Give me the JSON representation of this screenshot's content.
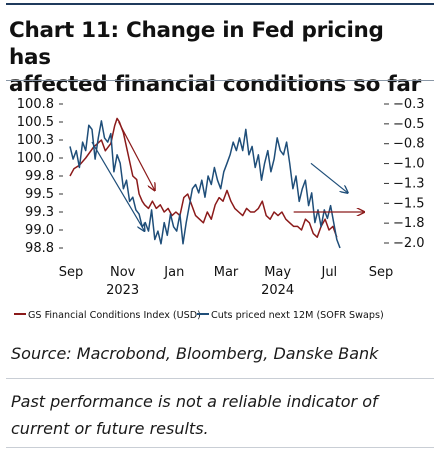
{
  "title_line1": "Chart 11: Change in Fed pricing has",
  "title_line2": "affected financial conditions so far",
  "source": "Source: Macrobond, Bloomberg, Danske Bank",
  "disclaimer": "Past performance is not a reliable indicator of current or future results.",
  "chart_data": {
    "type": "line",
    "left_axis": {
      "ticks": [
        "100.8",
        "100.5",
        "100.3",
        "100.0",
        "99.8",
        "99.5",
        "99.3",
        "99.0",
        "98.8"
      ],
      "range": [
        98.8,
        100.8
      ]
    },
    "right_axis": {
      "ticks": [
        "-0.3",
        "-0.5",
        "-0.8",
        "-1.0",
        "-1.3",
        "-1.5",
        "-1.8",
        "-2.0"
      ],
      "range": [
        -2.0,
        -0.3
      ]
    },
    "x_ticks": [
      "Sep",
      "Nov",
      "Jan",
      "Mar",
      "May",
      "Jul",
      "Sep"
    ],
    "x_years": [
      {
        "label": "2023",
        "under": "Nov"
      },
      {
        "label": "2024",
        "under": "May"
      }
    ],
    "x_range_days": [
      0,
      395
    ],
    "legend_position": "bottom",
    "grid": false,
    "series": [
      {
        "name": "GS Financial Conditions Index (USD)",
        "axis": "left",
        "color": "#8b1a1a",
        "x": [
          0,
          5,
          12,
          20,
          30,
          40,
          45,
          52,
          57,
          60,
          63,
          68,
          75,
          80,
          85,
          88,
          92,
          95,
          100,
          105,
          110,
          115,
          120,
          125,
          130,
          135,
          140,
          145,
          150,
          155,
          160,
          165,
          170,
          175,
          180,
          185,
          190,
          195,
          200,
          205,
          210,
          215,
          220,
          225,
          230,
          235,
          240,
          245,
          250,
          255,
          260,
          265,
          270,
          275,
          280,
          285,
          290,
          295,
          300,
          305,
          310,
          315,
          320,
          325,
          330,
          335,
          340
        ],
        "values": [
          99.8,
          99.9,
          99.95,
          100.05,
          100.2,
          100.3,
          100.15,
          100.25,
          100.5,
          100.6,
          100.55,
          100.4,
          100.05,
          99.8,
          99.75,
          99.55,
          99.45,
          99.4,
          99.35,
          99.45,
          99.35,
          99.4,
          99.3,
          99.35,
          99.25,
          99.3,
          99.25,
          99.5,
          99.55,
          99.4,
          99.25,
          99.2,
          99.15,
          99.3,
          99.2,
          99.4,
          99.5,
          99.45,
          99.6,
          99.45,
          99.35,
          99.3,
          99.25,
          99.35,
          99.3,
          99.3,
          99.35,
          99.45,
          99.25,
          99.2,
          99.3,
          99.25,
          99.3,
          99.2,
          99.15,
          99.1,
          99.1,
          99.05,
          99.2,
          99.15,
          99.0,
          98.95,
          99.1,
          99.2,
          99.05,
          99.1,
          98.95
        ]
      },
      {
        "name": "Cuts priced next 12M (SOFR Swaps)",
        "axis": "right",
        "color": "#1f4e79",
        "x": [
          0,
          4,
          8,
          12,
          16,
          20,
          24,
          28,
          32,
          36,
          40,
          44,
          48,
          52,
          56,
          60,
          64,
          68,
          72,
          76,
          80,
          84,
          88,
          92,
          96,
          100,
          104,
          108,
          112,
          116,
          120,
          124,
          128,
          132,
          136,
          140,
          144,
          148,
          152,
          156,
          160,
          164,
          168,
          172,
          176,
          180,
          184,
          188,
          192,
          196,
          200,
          204,
          208,
          212,
          216,
          220,
          224,
          228,
          232,
          236,
          240,
          244,
          248,
          252,
          256,
          260,
          264,
          268,
          272,
          276,
          280,
          284,
          288,
          292,
          296,
          300,
          304,
          308,
          312,
          316,
          320,
          324,
          328,
          332,
          336,
          340,
          344
        ],
        "values": [
          -0.8,
          -0.95,
          -0.85,
          -1.05,
          -0.75,
          -0.85,
          -0.55,
          -0.6,
          -0.95,
          -0.7,
          -0.5,
          -0.7,
          -0.75,
          -0.65,
          -1.1,
          -0.9,
          -1.0,
          -1.3,
          -1.2,
          -1.45,
          -1.4,
          -1.55,
          -1.6,
          -1.75,
          -1.7,
          -1.8,
          -1.55,
          -1.9,
          -1.8,
          -1.95,
          -1.7,
          -1.85,
          -1.6,
          -1.75,
          -1.8,
          -1.6,
          -1.95,
          -1.7,
          -1.5,
          -1.3,
          -1.25,
          -1.35,
          -1.2,
          -1.4,
          -1.15,
          -1.25,
          -1.05,
          -1.2,
          -1.3,
          -1.1,
          -1.0,
          -0.9,
          -0.75,
          -0.85,
          -0.7,
          -0.85,
          -0.6,
          -0.9,
          -0.8,
          -1.05,
          -0.9,
          -1.2,
          -1.0,
          -0.85,
          -1.1,
          -0.95,
          -0.7,
          -0.85,
          -0.9,
          -0.75,
          -1.0,
          -1.3,
          -1.15,
          -1.45,
          -1.3,
          -1.2,
          -1.5,
          -1.35,
          -1.7,
          -1.55,
          -1.75,
          -1.55,
          -1.65,
          -1.5,
          -1.7,
          -1.9,
          -2.0
        ]
      }
    ],
    "annotations": [
      {
        "type": "arrow",
        "color": "#8b1a1a",
        "from": {
          "x": 62,
          "y": 100.55
        },
        "to": {
          "x": 108,
          "y": 99.6
        }
      },
      {
        "type": "arrow",
        "color": "#1f4e79",
        "from": {
          "x": 28,
          "y": -0.75
        },
        "to": {
          "x": 95,
          "y": -1.8
        }
      },
      {
        "type": "arrow",
        "color": "#8b1a1a",
        "from": {
          "x": 285,
          "y": 99.3
        },
        "to": {
          "x": 375,
          "y": 99.3
        }
      },
      {
        "type": "arrow",
        "color": "#1f4e79",
        "from": {
          "x": 307,
          "y": -1.0
        },
        "to": {
          "x": 354,
          "y": -1.35
        }
      }
    ]
  }
}
